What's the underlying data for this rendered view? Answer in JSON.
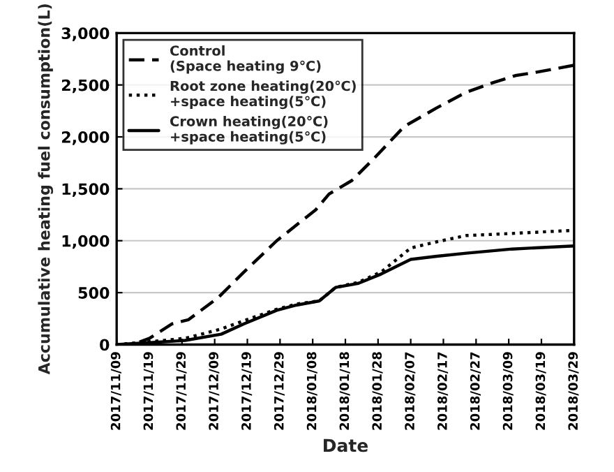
{
  "chart_data": {
    "type": "line",
    "xlabel": "Date",
    "ylabel": "Accumulative heating fuel consumption(L)",
    "series": [
      {
        "name": "Control\n(Space heating 9℃)",
        "color": "#000000",
        "line_style": "dashed",
        "x": [
          "2017-11-09",
          "2017-11-14",
          "2017-11-19",
          "2017-11-26",
          "2017-12-01",
          "2017-12-10",
          "2017-12-18",
          "2017-12-28",
          "2018-01-09",
          "2018-01-13",
          "2018-01-20",
          "2018-01-27",
          "2018-02-05",
          "2018-02-15",
          "2018-02-24",
          "2018-03-04",
          "2018-03-11",
          "2018-03-17",
          "2018-03-29"
        ],
        "values": [
          0,
          0,
          60,
          200,
          240,
          450,
          700,
          1000,
          1300,
          1450,
          1580,
          1800,
          2100,
          2280,
          2430,
          2520,
          2590,
          2620,
          2690
        ]
      },
      {
        "name": "Root zone heating(20℃)\n+space heating(5℃)",
        "color": "#000000",
        "line_style": "dotted",
        "x": [
          "2017-11-09",
          "2017-11-20",
          "2017-11-30",
          "2017-12-11",
          "2017-12-18",
          "2017-12-28",
          "2018-01-03",
          "2018-01-10",
          "2018-01-15",
          "2018-01-22",
          "2018-01-29",
          "2018-02-07",
          "2018-02-15",
          "2018-02-24",
          "2018-03-10",
          "2018-03-29"
        ],
        "values": [
          0,
          30,
          60,
          150,
          230,
          340,
          390,
          420,
          550,
          600,
          700,
          930,
          990,
          1050,
          1070,
          1100
        ]
      },
      {
        "name": "Crown heating(20℃)\n+space heating(5℃)",
        "color": "#000000",
        "line_style": "solid",
        "x": [
          "2017-11-09",
          "2017-11-20",
          "2017-11-30",
          "2017-12-11",
          "2017-12-18",
          "2017-12-28",
          "2018-01-03",
          "2018-01-10",
          "2018-01-15",
          "2018-01-22",
          "2018-01-29",
          "2018-02-07",
          "2018-02-15",
          "2018-02-24",
          "2018-03-10",
          "2018-03-29"
        ],
        "values": [
          0,
          20,
          40,
          100,
          200,
          330,
          380,
          420,
          550,
          590,
          680,
          820,
          850,
          880,
          920,
          950
        ]
      }
    ],
    "xlim": [
      "2017-11-09",
      "2018-03-29"
    ],
    "xticks": [
      {
        "value": "2017-11-09",
        "label": "2017/11/09"
      },
      {
        "value": "2017-11-19",
        "label": "2017/11/19"
      },
      {
        "value": "2017-11-29",
        "label": "2017/11/29"
      },
      {
        "value": "2017-12-09",
        "label": "2017/12/09"
      },
      {
        "value": "2017-12-19",
        "label": "2017/12/19"
      },
      {
        "value": "2017-12-29",
        "label": "2017/12/29"
      },
      {
        "value": "2018-01-08",
        "label": "2018/01/08"
      },
      {
        "value": "2018-01-18",
        "label": "2018/01/18"
      },
      {
        "value": "2018-01-28",
        "label": "2018/01/28"
      },
      {
        "value": "2018-02-07",
        "label": "2018/02/07"
      },
      {
        "value": "2018-02-17",
        "label": "2018/02/17"
      },
      {
        "value": "2018-02-27",
        "label": "2018/02/27"
      },
      {
        "value": "2018-03-09",
        "label": "2018/03/09"
      },
      {
        "value": "2018-03-19",
        "label": "2018/03/19"
      },
      {
        "value": "2018-03-29",
        "label": "2018/03/29"
      }
    ],
    "ylim": [
      0,
      3000
    ],
    "yticks": [
      0,
      {
        "value": 500,
        "label": "500"
      },
      {
        "value": 1000,
        "label": "1,000"
      },
      {
        "value": 1500,
        "label": "1,500"
      },
      {
        "value": 2000,
        "label": "2,000"
      },
      {
        "value": 2500,
        "label": "2,500"
      },
      {
        "value": 3000,
        "label": "3,000"
      }
    ],
    "grid": "y",
    "legend": "top left",
    "marker": "none"
  }
}
